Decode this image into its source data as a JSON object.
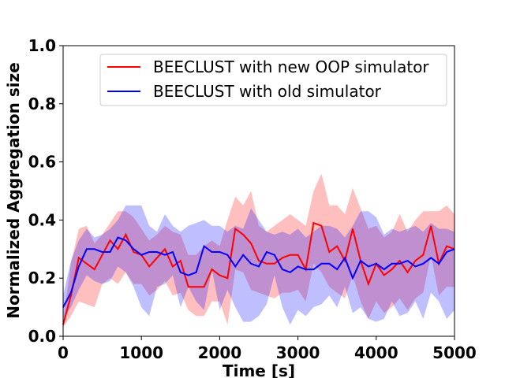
{
  "chart_data": {
    "type": "line",
    "title": "",
    "xlabel": "Time [s]",
    "ylabel": "Normalized Aggregation size",
    "xlim": [
      0,
      5000
    ],
    "ylim": [
      0.0,
      1.0
    ],
    "x_ticks": [
      0,
      1000,
      2000,
      3000,
      4000,
      5000
    ],
    "x_tick_labels": [
      "0",
      "1000",
      "2000",
      "3000",
      "4000",
      "5000"
    ],
    "y_ticks": [
      0.0,
      0.2,
      0.4,
      0.6,
      0.8,
      1.0
    ],
    "y_tick_labels": [
      "0.0",
      "0.2",
      "0.4",
      "0.6",
      "0.8",
      "1.0"
    ],
    "grid": false,
    "legend_position": "top-right",
    "x": [
      0,
      100,
      200,
      300,
      400,
      500,
      600,
      700,
      800,
      900,
      1000,
      1100,
      1200,
      1300,
      1400,
      1500,
      1600,
      1700,
      1800,
      1900,
      2000,
      2100,
      2200,
      2300,
      2400,
      2500,
      2600,
      2700,
      2800,
      2900,
      3000,
      3100,
      3200,
      3300,
      3400,
      3500,
      3600,
      3700,
      3800,
      3900,
      4000,
      4100,
      4200,
      4300,
      4400,
      4500,
      4600,
      4700,
      4800,
      4900,
      5000
    ],
    "series": [
      {
        "name": "BEECLUST with new OOP simulator",
        "color": "#ff0000",
        "band_color": "#ff0000",
        "values": [
          0.04,
          0.14,
          0.27,
          0.25,
          0.23,
          0.28,
          0.33,
          0.3,
          0.35,
          0.29,
          0.28,
          0.24,
          0.27,
          0.3,
          0.24,
          0.26,
          0.17,
          0.17,
          0.17,
          0.23,
          0.21,
          0.2,
          0.37,
          0.35,
          0.32,
          0.26,
          0.25,
          0.25,
          0.27,
          0.28,
          0.28,
          0.23,
          0.39,
          0.38,
          0.29,
          0.31,
          0.26,
          0.37,
          0.26,
          0.18,
          0.25,
          0.21,
          0.23,
          0.26,
          0.22,
          0.26,
          0.28,
          0.38,
          0.25,
          0.31,
          0.3
        ],
        "upper": [
          0.05,
          0.25,
          0.37,
          0.38,
          0.32,
          0.35,
          0.39,
          0.43,
          0.43,
          0.41,
          0.37,
          0.33,
          0.35,
          0.38,
          0.36,
          0.35,
          0.28,
          0.28,
          0.31,
          0.33,
          0.31,
          0.4,
          0.48,
          0.45,
          0.5,
          0.38,
          0.36,
          0.38,
          0.4,
          0.42,
          0.4,
          0.38,
          0.5,
          0.56,
          0.45,
          0.45,
          0.42,
          0.51,
          0.44,
          0.37,
          0.38,
          0.34,
          0.36,
          0.42,
          0.36,
          0.4,
          0.43,
          0.43,
          0.43,
          0.45,
          0.42
        ],
        "lower": [
          0.03,
          0.07,
          0.12,
          0.11,
          0.1,
          0.18,
          0.2,
          0.18,
          0.22,
          0.18,
          0.18,
          0.14,
          0.16,
          0.19,
          0.14,
          0.15,
          0.09,
          0.07,
          0.07,
          0.12,
          0.12,
          0.04,
          0.23,
          0.22,
          0.16,
          0.15,
          0.14,
          0.13,
          0.15,
          0.15,
          0.16,
          0.12,
          0.25,
          0.22,
          0.17,
          0.15,
          0.13,
          0.21,
          0.12,
          0.06,
          0.12,
          0.08,
          0.1,
          0.13,
          0.09,
          0.13,
          0.15,
          0.28,
          0.14,
          0.17,
          0.17
        ]
      },
      {
        "name": "BEECLUST with old simulator",
        "color": "#0000ff",
        "band_color": "#0000ff",
        "values": [
          0.1,
          0.15,
          0.24,
          0.3,
          0.3,
          0.29,
          0.29,
          0.34,
          0.33,
          0.3,
          0.28,
          0.29,
          0.29,
          0.28,
          0.29,
          0.22,
          0.21,
          0.22,
          0.31,
          0.29,
          0.29,
          0.28,
          0.24,
          0.28,
          0.25,
          0.24,
          0.29,
          0.28,
          0.23,
          0.22,
          0.24,
          0.23,
          0.23,
          0.25,
          0.25,
          0.23,
          0.27,
          0.2,
          0.26,
          0.24,
          0.25,
          0.23,
          0.25,
          0.25,
          0.26,
          0.24,
          0.25,
          0.27,
          0.25,
          0.29,
          0.3
        ],
        "upper": [
          0.14,
          0.26,
          0.33,
          0.37,
          0.34,
          0.35,
          0.37,
          0.4,
          0.45,
          0.45,
          0.45,
          0.38,
          0.36,
          0.42,
          0.38,
          0.36,
          0.38,
          0.39,
          0.4,
          0.38,
          0.38,
          0.36,
          0.38,
          0.37,
          0.44,
          0.4,
          0.36,
          0.35,
          0.36,
          0.35,
          0.37,
          0.34,
          0.36,
          0.38,
          0.38,
          0.37,
          0.34,
          0.38,
          0.43,
          0.43,
          0.41,
          0.35,
          0.37,
          0.36,
          0.37,
          0.38,
          0.36,
          0.39,
          0.37,
          0.37,
          0.36
        ],
        "lower": [
          0.06,
          0.1,
          0.16,
          0.21,
          0.19,
          0.18,
          0.19,
          0.24,
          0.22,
          0.17,
          0.1,
          0.07,
          0.17,
          0.18,
          0.21,
          0.1,
          0.17,
          0.12,
          0.09,
          0.23,
          0.09,
          0.16,
          0.1,
          0.05,
          0.05,
          0.07,
          0.11,
          0.21,
          0.1,
          0.04,
          0.09,
          0.07,
          0.1,
          0.11,
          0.14,
          0.1,
          0.17,
          0.08,
          0.1,
          0.06,
          0.05,
          0.06,
          0.12,
          0.07,
          0.08,
          0.12,
          0.06,
          0.15,
          0.12,
          0.06,
          0.09
        ]
      }
    ]
  }
}
